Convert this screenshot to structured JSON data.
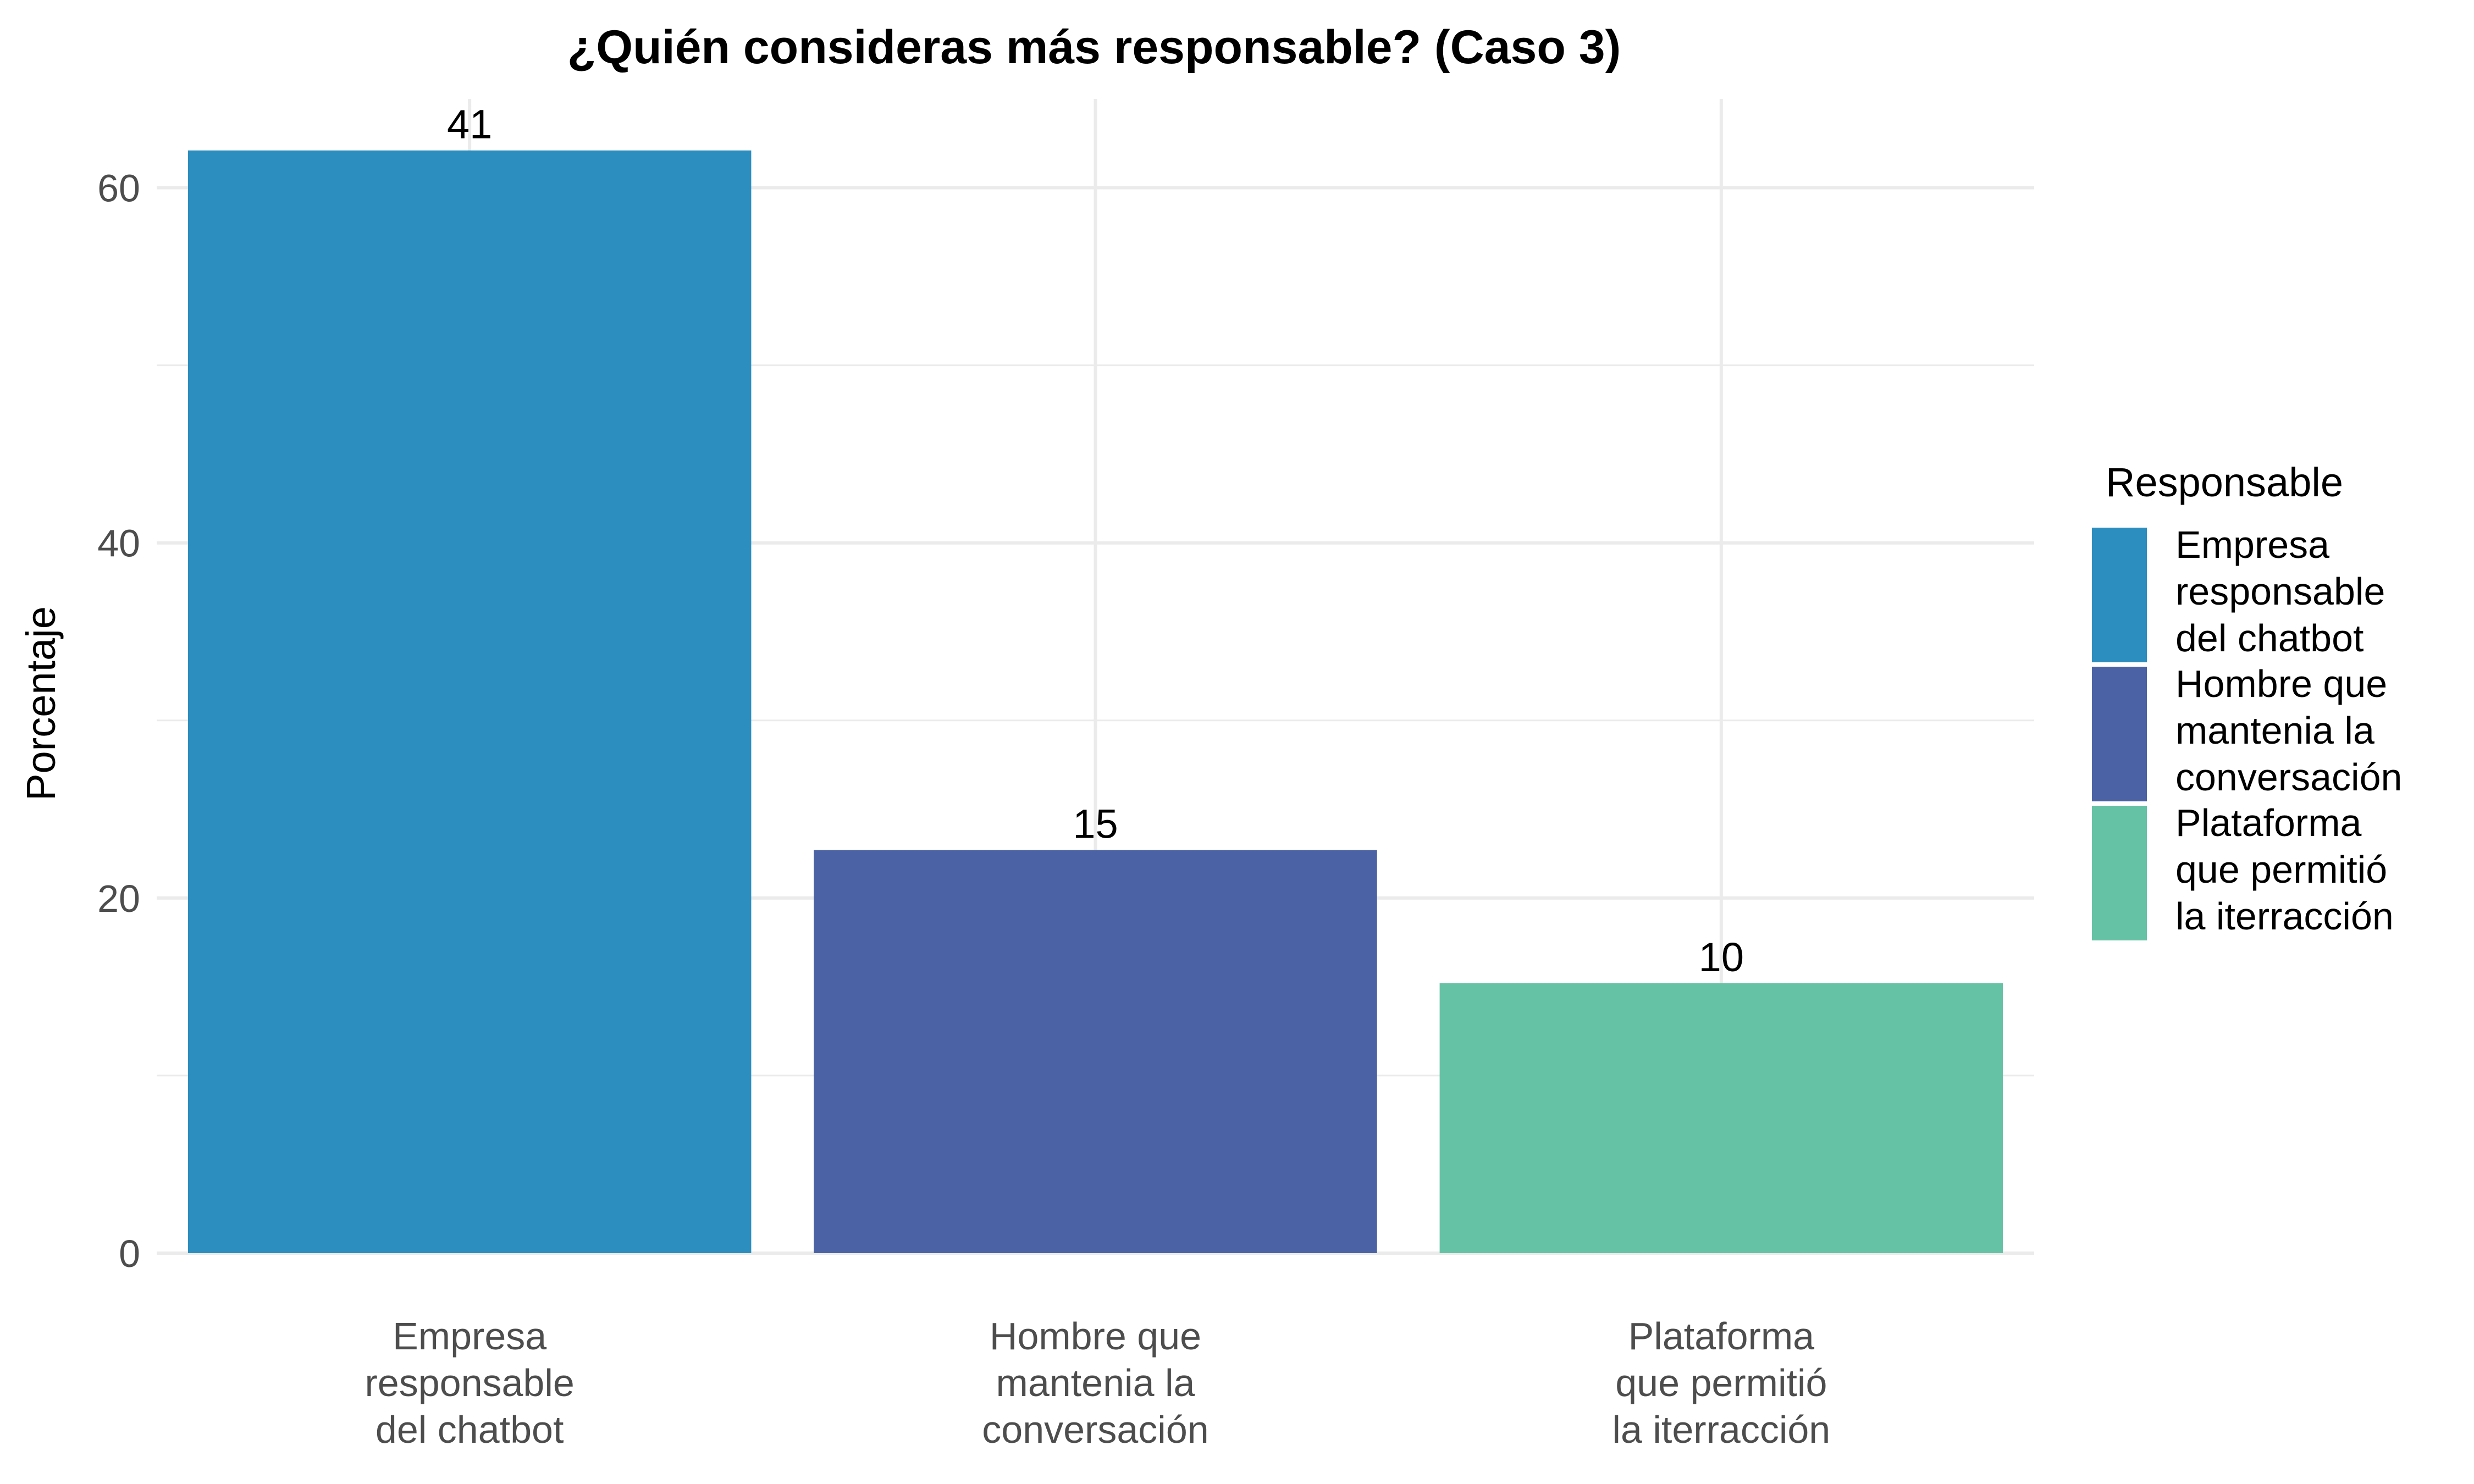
{
  "chart_data": {
    "type": "bar",
    "title": "¿Quién consideras más responsable? (Caso 3)",
    "xlabel": "",
    "ylabel": "Porcentaje",
    "ylim": [
      0,
      65
    ],
    "y_ticks": [
      0,
      20,
      40,
      60
    ],
    "y_minor_ticks": [
      10,
      30,
      50
    ],
    "grid": true,
    "legend_position": "right",
    "legend_title": "Responsable",
    "categories": [
      [
        "Empresa",
        "responsable",
        "del chatbot"
      ],
      [
        "Hombre que",
        "mantenia la",
        "conversación"
      ],
      [
        "Plataforma",
        "que permitió",
        "la iterracción"
      ]
    ],
    "values": [
      62.1,
      22.7,
      15.2
    ],
    "data_labels": [
      "41",
      "15",
      "10"
    ],
    "colors": [
      "#2C8EBE",
      "#4B62A4",
      "#66C2A5"
    ]
  }
}
